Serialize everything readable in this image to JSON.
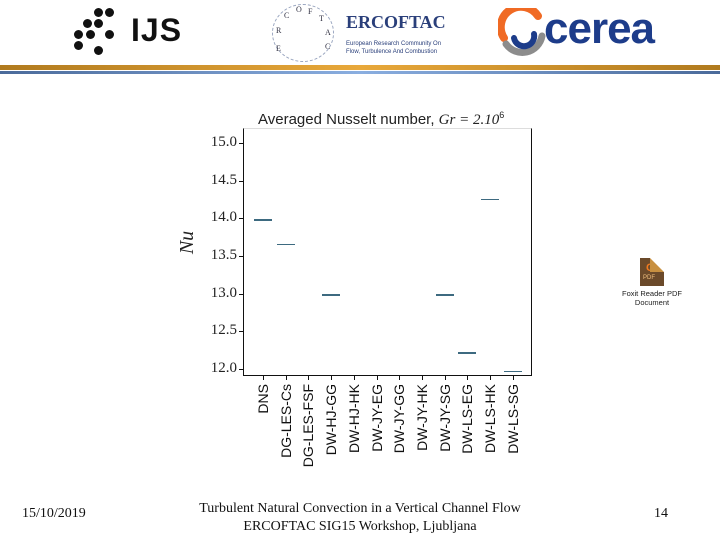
{
  "header": {
    "logos": {
      "ijs": "IJS",
      "ercoftac": "ERCOFTAC",
      "ercoftac_subtitle_line1": "European Research Community On",
      "ercoftac_subtitle_line2": "Flow, Turbulence And Combustion",
      "ercoftac_globe_letters": [
        "E",
        "R",
        "C",
        "O",
        "F",
        "T",
        "A",
        "C"
      ],
      "cerea": "cerea"
    },
    "colors": {
      "gold_bar": "#e8a83a",
      "blue_bar": "#6a8ec4",
      "cerea_blue": "#1d3c8a",
      "cerea_orange": "#f06a24"
    }
  },
  "chart_data": {
    "type": "scatter",
    "marker": "horizontal-dash",
    "title": "Averaged Nusselt number, Gr = 2.10^6",
    "title_parts": {
      "text": "Averaged Nusselt number, ",
      "math": "Gr = 2.10",
      "sup": "6"
    },
    "xlabel": "",
    "ylabel": "Nu",
    "ylim": [
      12.0,
      15.0
    ],
    "yticks": [
      "15.0",
      "14.5",
      "14.0",
      "13.5",
      "13.0",
      "12.5",
      "12.0"
    ],
    "grid": false,
    "legend": null,
    "categories": [
      "DNS",
      "DG-LES-Cs",
      "DG-LES-FSF",
      "DW-HJ-GG",
      "DW-HJ-HK",
      "DW-JY-EG",
      "DW-JY-GG",
      "DW-JY-HK",
      "DW-JY-SG",
      "DW-LS-EG",
      "DW-LS-HK",
      "DW-LS-SG"
    ],
    "values": [
      13.99,
      13.66,
      null,
      12.99,
      null,
      null,
      null,
      null,
      12.99,
      12.22,
      14.26,
      11.98
    ],
    "marker_color": "#3d6a80"
  },
  "attachment": {
    "icon": "foxit-pdf-icon",
    "icon_letter": "G",
    "icon_sub": "PDF",
    "caption_line1": "Foxit Reader PDF",
    "caption_line2": "Document"
  },
  "footer": {
    "date": "15/10/2019",
    "title_line1": "Turbulent Natural Convection in a Vertical Channel Flow",
    "title_line2": "ERCOFTAC SIG15 Workshop, Ljubljana",
    "page": "14"
  }
}
